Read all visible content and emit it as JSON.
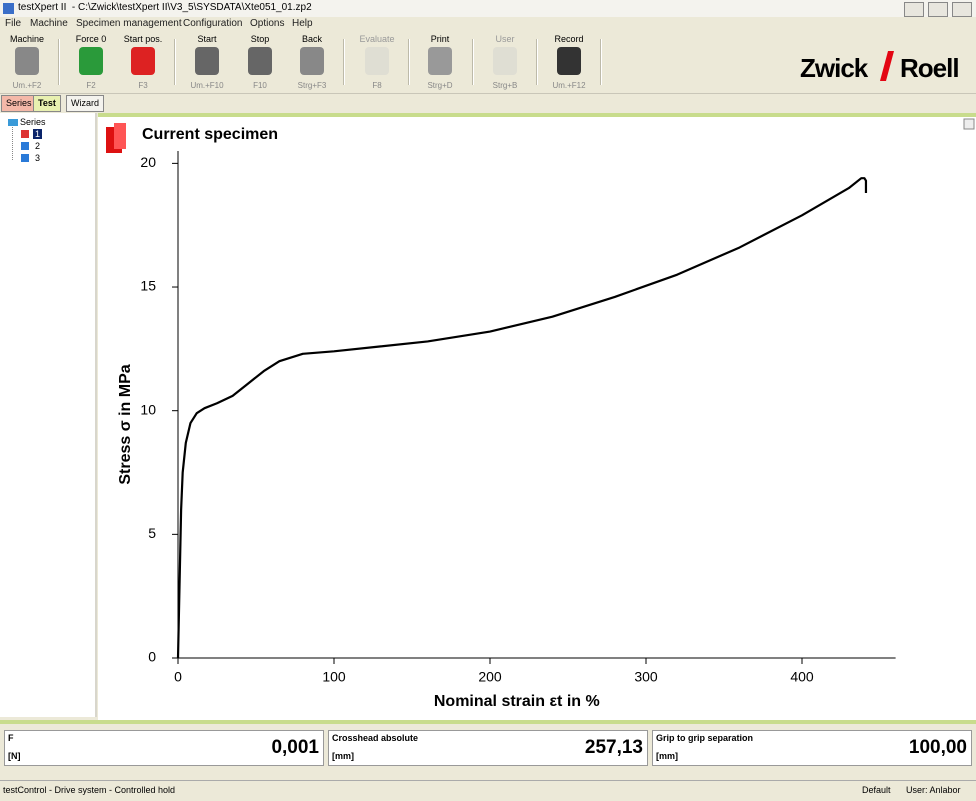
{
  "window": {
    "title": "testXpert II  - C:\\Zwick\\testXpert II\\V3_5\\SYSDATA\\Xte051_01.zp2"
  },
  "menu": [
    "File",
    "Machine",
    "Specimen management",
    "Configuration",
    "Options",
    "Help"
  ],
  "toolbar": [
    {
      "label": "Machine",
      "key": "Um.+F2"
    },
    {
      "label": "Force 0",
      "key": "F2"
    },
    {
      "label": "Start pos.",
      "key": "F3"
    },
    {
      "label": "Start",
      "key": "Um.+F10"
    },
    {
      "label": "Stop",
      "key": "F10"
    },
    {
      "label": "Back",
      "key": "Strg+F3"
    },
    {
      "label": "Evaluate",
      "key": "F8"
    },
    {
      "label": "Print",
      "key": "Strg+D"
    },
    {
      "label": "User",
      "key": "Strg+B"
    },
    {
      "label": "Record",
      "key": "Um.+F12"
    }
  ],
  "logo": {
    "left": "Zwick",
    "right": "Roell"
  },
  "tabs": [
    "Series",
    "Test",
    "Wizard"
  ],
  "tree": {
    "root": "Series",
    "items": [
      "1",
      "2",
      "3"
    ]
  },
  "chart_data": {
    "type": "line",
    "title": "Current specimen",
    "x_label": "Nominal strain εt in %",
    "y_label": "Stress σ in MPa",
    "color": "#000000",
    "x": [
      0,
      1,
      2,
      3,
      5,
      8,
      12,
      17,
      25,
      35,
      45,
      55,
      65,
      80,
      100,
      130,
      160,
      200,
      240,
      280,
      320,
      360,
      400,
      430,
      438,
      440,
      441,
      441
    ],
    "values": [
      0,
      3,
      6,
      7.5,
      8.7,
      9.5,
      9.9,
      10.1,
      10.3,
      10.6,
      11.1,
      11.6,
      12,
      12.3,
      12.4,
      12.6,
      12.8,
      13.2,
      13.8,
      14.6,
      15.5,
      16.6,
      17.9,
      19.0,
      19.4,
      19.4,
      19.3,
      18.8
    ],
    "xlim": [
      0,
      460
    ],
    "xticks": [
      0,
      100,
      200,
      300,
      400
    ],
    "ylim": [
      0,
      20.5
    ],
    "yticks": [
      0,
      5,
      10,
      15,
      20
    ]
  },
  "readouts": [
    {
      "name": "F",
      "unit": "[N]",
      "value": "0,001"
    },
    {
      "name": "Crosshead absolute",
      "unit": "[mm]",
      "value": "257,13"
    },
    {
      "name": "Grip to grip separation",
      "unit": "[mm]",
      "value": "100,00"
    }
  ],
  "status": {
    "message": "testControl - Drive system - Controlled hold",
    "profile": "Default",
    "user": "User: Anlabor"
  }
}
